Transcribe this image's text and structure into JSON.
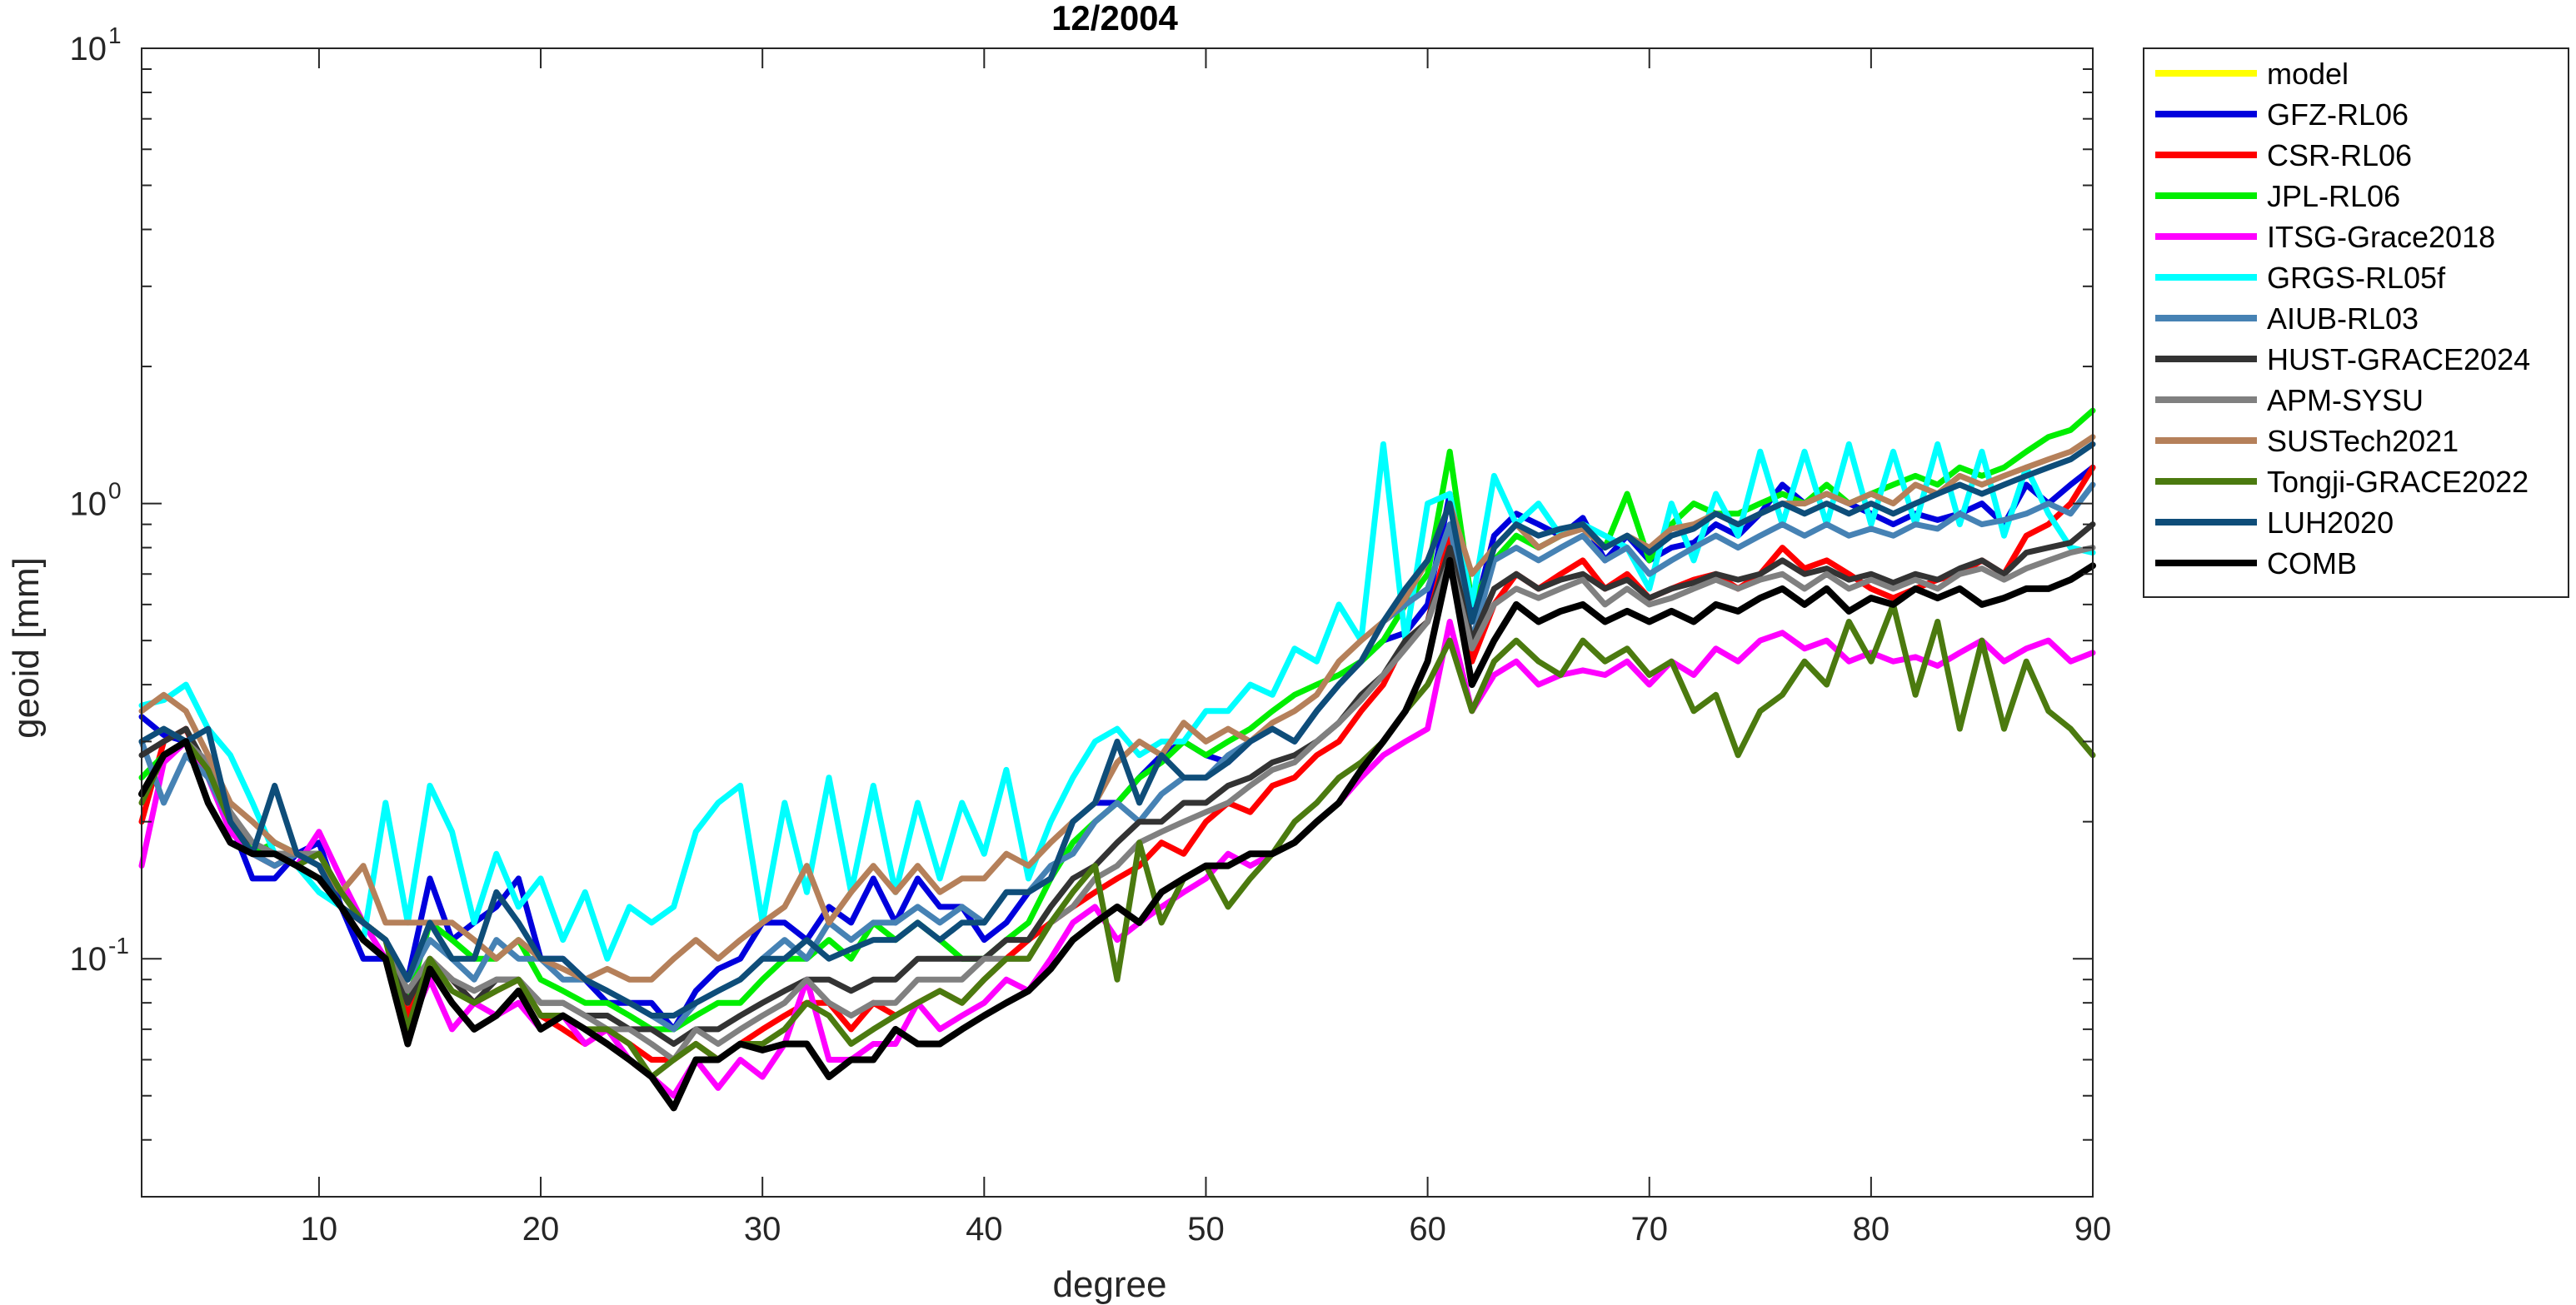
{
  "chart_data": {
    "type": "line",
    "title": "12/2004",
    "xlabel": "degree",
    "ylabel": "geoid [mm]",
    "x_scale": "linear",
    "y_scale": "log",
    "xlim": [
      2,
      90
    ],
    "ylim": [
      0.03,
      10
    ],
    "x_ticks": [
      10,
      20,
      30,
      40,
      50,
      60,
      70,
      80,
      90
    ],
    "x_tick_labels": [
      "10",
      "20",
      "30",
      "40",
      "50",
      "60",
      "70",
      "80",
      "90"
    ],
    "y_ticks": [
      {
        "value": 0.1,
        "base": "10",
        "exp": "-1"
      },
      {
        "value": 1,
        "base": "10",
        "exp": "0"
      },
      {
        "value": 10,
        "base": "10",
        "exp": "1"
      }
    ],
    "grid": false,
    "legend_placement": "outside-right",
    "series": [
      {
        "name": "model",
        "color": "#ffff00",
        "values": []
      },
      {
        "name": "GFZ-RL06",
        "color": "#0000dd",
        "values": [
          0.34,
          0.31,
          0.3,
          0.27,
          0.2,
          0.15,
          0.15,
          0.17,
          0.18,
          0.13,
          0.1,
          0.1,
          0.09,
          0.15,
          0.11,
          0.12,
          0.13,
          0.15,
          0.1,
          0.1,
          0.09,
          0.08,
          0.08,
          0.08,
          0.07,
          0.085,
          0.095,
          0.1,
          0.12,
          0.12,
          0.11,
          0.13,
          0.12,
          0.15,
          0.12,
          0.15,
          0.13,
          0.13,
          0.11,
          0.12,
          0.14,
          0.15,
          0.2,
          0.22,
          0.22,
          0.25,
          0.28,
          0.3,
          0.28,
          0.27,
          0.3,
          0.32,
          0.3,
          0.35,
          0.4,
          0.45,
          0.5,
          0.52,
          0.6,
          1.05,
          0.55,
          0.85,
          0.95,
          0.9,
          0.85,
          0.93,
          0.75,
          0.85,
          0.75,
          0.8,
          0.82,
          0.9,
          0.85,
          0.95,
          1.1,
          1.0,
          1.05,
          1.0,
          0.95,
          0.9,
          0.95,
          0.92,
          0.95,
          1.0,
          0.9,
          1.1,
          1.0,
          1.1,
          1.2
        ]
      },
      {
        "name": "CSR-RL06",
        "color": "#ff0000",
        "values": [
          0.2,
          0.3,
          0.32,
          0.25,
          0.2,
          0.17,
          0.16,
          0.17,
          0.16,
          0.13,
          0.12,
          0.11,
          0.075,
          0.1,
          0.09,
          0.08,
          0.085,
          0.09,
          0.075,
          0.07,
          0.065,
          0.07,
          0.065,
          0.06,
          0.06,
          0.065,
          0.06,
          0.065,
          0.07,
          0.075,
          0.08,
          0.08,
          0.07,
          0.08,
          0.075,
          0.08,
          0.085,
          0.08,
          0.09,
          0.1,
          0.11,
          0.12,
          0.13,
          0.14,
          0.15,
          0.16,
          0.18,
          0.17,
          0.2,
          0.22,
          0.21,
          0.24,
          0.25,
          0.28,
          0.3,
          0.35,
          0.4,
          0.5,
          0.55,
          0.85,
          0.45,
          0.6,
          0.7,
          0.65,
          0.7,
          0.75,
          0.65,
          0.7,
          0.62,
          0.65,
          0.68,
          0.7,
          0.65,
          0.7,
          0.8,
          0.72,
          0.75,
          0.7,
          0.65,
          0.62,
          0.65,
          0.68,
          0.7,
          0.75,
          0.7,
          0.85,
          0.9,
          1.0,
          1.2
        ]
      },
      {
        "name": "JPL-RL06",
        "color": "#00ee00",
        "values": [
          0.25,
          0.28,
          0.3,
          0.26,
          0.21,
          0.17,
          0.18,
          0.17,
          0.17,
          0.14,
          0.12,
          0.11,
          0.08,
          0.12,
          0.11,
          0.1,
          0.1,
          0.11,
          0.09,
          0.085,
          0.08,
          0.08,
          0.075,
          0.07,
          0.07,
          0.075,
          0.08,
          0.08,
          0.09,
          0.1,
          0.1,
          0.11,
          0.1,
          0.12,
          0.11,
          0.12,
          0.11,
          0.1,
          0.1,
          0.11,
          0.12,
          0.15,
          0.18,
          0.2,
          0.22,
          0.25,
          0.27,
          0.3,
          0.28,
          0.3,
          0.32,
          0.35,
          0.38,
          0.4,
          0.42,
          0.45,
          0.5,
          0.6,
          0.7,
          1.3,
          0.6,
          0.75,
          0.85,
          0.8,
          0.85,
          0.9,
          0.8,
          1.05,
          0.75,
          0.9,
          1.0,
          0.95,
          0.95,
          1.0,
          1.05,
          1.0,
          1.1,
          1.0,
          1.05,
          1.1,
          1.15,
          1.1,
          1.2,
          1.15,
          1.2,
          1.3,
          1.4,
          1.45,
          1.6
        ]
      },
      {
        "name": "ITSG-Grace2018",
        "color": "#ff00ff",
        "values": [
          0.16,
          0.27,
          0.3,
          0.25,
          0.19,
          0.17,
          0.17,
          0.16,
          0.19,
          0.15,
          0.12,
          0.1,
          0.07,
          0.09,
          0.07,
          0.08,
          0.075,
          0.08,
          0.07,
          0.075,
          0.065,
          0.07,
          0.06,
          0.055,
          0.05,
          0.06,
          0.052,
          0.06,
          0.055,
          0.065,
          0.09,
          0.06,
          0.06,
          0.065,
          0.065,
          0.08,
          0.07,
          0.075,
          0.08,
          0.09,
          0.085,
          0.1,
          0.12,
          0.13,
          0.11,
          0.12,
          0.13,
          0.14,
          0.15,
          0.17,
          0.16,
          0.17,
          0.18,
          0.2,
          0.22,
          0.25,
          0.28,
          0.3,
          0.32,
          0.55,
          0.35,
          0.42,
          0.45,
          0.4,
          0.42,
          0.43,
          0.42,
          0.45,
          0.4,
          0.45,
          0.42,
          0.48,
          0.45,
          0.5,
          0.52,
          0.48,
          0.5,
          0.45,
          0.47,
          0.45,
          0.46,
          0.44,
          0.47,
          0.5,
          0.45,
          0.48,
          0.5,
          0.45,
          0.47
        ]
      },
      {
        "name": "GRGS-RL05f",
        "color": "#00ffff",
        "values": [
          0.36,
          0.37,
          0.4,
          0.32,
          0.28,
          0.22,
          0.17,
          0.16,
          0.14,
          0.13,
          0.11,
          0.22,
          0.12,
          0.24,
          0.19,
          0.12,
          0.17,
          0.13,
          0.15,
          0.11,
          0.14,
          0.1,
          0.13,
          0.12,
          0.13,
          0.19,
          0.22,
          0.24,
          0.12,
          0.22,
          0.14,
          0.25,
          0.14,
          0.24,
          0.14,
          0.22,
          0.15,
          0.22,
          0.17,
          0.26,
          0.15,
          0.2,
          0.25,
          0.3,
          0.32,
          0.28,
          0.3,
          0.3,
          0.35,
          0.35,
          0.4,
          0.38,
          0.48,
          0.45,
          0.6,
          0.5,
          1.35,
          0.5,
          1.0,
          1.05,
          0.6,
          1.15,
          0.9,
          1.0,
          0.85,
          0.9,
          0.85,
          0.8,
          0.65,
          1.0,
          0.75,
          1.05,
          0.85,
          1.3,
          0.9,
          1.3,
          0.9,
          1.35,
          0.9,
          1.3,
          0.9,
          1.35,
          0.9,
          1.3,
          0.85,
          1.2,
          0.95,
          0.8,
          0.78
        ]
      },
      {
        "name": "AIUB-RL03",
        "color": "#4682b4",
        "values": [
          0.3,
          0.22,
          0.28,
          0.25,
          0.2,
          0.17,
          0.16,
          0.17,
          0.16,
          0.14,
          0.12,
          0.11,
          0.09,
          0.11,
          0.1,
          0.09,
          0.11,
          0.1,
          0.1,
          0.09,
          0.09,
          0.085,
          0.08,
          0.075,
          0.07,
          0.08,
          0.085,
          0.09,
          0.1,
          0.11,
          0.1,
          0.12,
          0.11,
          0.12,
          0.12,
          0.13,
          0.12,
          0.13,
          0.12,
          0.14,
          0.14,
          0.16,
          0.17,
          0.2,
          0.22,
          0.2,
          0.23,
          0.25,
          0.25,
          0.28,
          0.3,
          0.32,
          0.3,
          0.35,
          0.4,
          0.45,
          0.55,
          0.6,
          0.65,
          0.9,
          0.5,
          0.75,
          0.8,
          0.75,
          0.8,
          0.85,
          0.75,
          0.8,
          0.7,
          0.75,
          0.8,
          0.85,
          0.8,
          0.85,
          0.9,
          0.85,
          0.9,
          0.85,
          0.88,
          0.85,
          0.9,
          0.88,
          0.95,
          0.9,
          0.92,
          0.95,
          1.0,
          0.95,
          1.1
        ]
      },
      {
        "name": "HUST-GRACE2024",
        "color": "#333333",
        "values": [
          0.28,
          0.3,
          0.32,
          0.26,
          0.2,
          0.18,
          0.17,
          0.17,
          0.17,
          0.14,
          0.12,
          0.11,
          0.08,
          0.1,
          0.09,
          0.08,
          0.09,
          0.09,
          0.08,
          0.08,
          0.075,
          0.075,
          0.07,
          0.07,
          0.065,
          0.07,
          0.07,
          0.075,
          0.08,
          0.085,
          0.09,
          0.09,
          0.085,
          0.09,
          0.09,
          0.1,
          0.1,
          0.1,
          0.1,
          0.11,
          0.11,
          0.13,
          0.15,
          0.16,
          0.18,
          0.2,
          0.2,
          0.22,
          0.22,
          0.24,
          0.25,
          0.27,
          0.28,
          0.3,
          0.33,
          0.38,
          0.42,
          0.5,
          0.55,
          0.8,
          0.5,
          0.65,
          0.7,
          0.65,
          0.68,
          0.7,
          0.65,
          0.68,
          0.62,
          0.65,
          0.67,
          0.7,
          0.68,
          0.7,
          0.75,
          0.7,
          0.72,
          0.68,
          0.7,
          0.67,
          0.7,
          0.68,
          0.72,
          0.75,
          0.7,
          0.78,
          0.8,
          0.82,
          0.9
        ]
      },
      {
        "name": "APM-SYSU",
        "color": "#808080",
        "values": [
          0.3,
          0.32,
          0.3,
          0.27,
          0.21,
          0.18,
          0.17,
          0.17,
          0.17,
          0.14,
          0.12,
          0.11,
          0.085,
          0.1,
          0.09,
          0.085,
          0.09,
          0.09,
          0.08,
          0.08,
          0.075,
          0.07,
          0.07,
          0.065,
          0.06,
          0.07,
          0.065,
          0.07,
          0.075,
          0.08,
          0.09,
          0.08,
          0.075,
          0.08,
          0.08,
          0.09,
          0.09,
          0.09,
          0.1,
          0.1,
          0.1,
          0.12,
          0.13,
          0.15,
          0.16,
          0.18,
          0.19,
          0.2,
          0.21,
          0.22,
          0.24,
          0.26,
          0.27,
          0.3,
          0.33,
          0.37,
          0.42,
          0.48,
          0.55,
          0.75,
          0.48,
          0.6,
          0.65,
          0.62,
          0.65,
          0.68,
          0.6,
          0.65,
          0.6,
          0.62,
          0.65,
          0.68,
          0.65,
          0.68,
          0.7,
          0.65,
          0.7,
          0.65,
          0.68,
          0.65,
          0.68,
          0.65,
          0.7,
          0.72,
          0.68,
          0.72,
          0.75,
          0.78,
          0.8
        ]
      },
      {
        "name": "SUSTech2021",
        "color": "#b5805a",
        "values": [
          0.35,
          0.38,
          0.35,
          0.28,
          0.22,
          0.2,
          0.18,
          0.17,
          0.16,
          0.14,
          0.16,
          0.12,
          0.12,
          0.12,
          0.12,
          0.11,
          0.1,
          0.11,
          0.1,
          0.095,
          0.09,
          0.095,
          0.09,
          0.09,
          0.1,
          0.11,
          0.1,
          0.11,
          0.12,
          0.13,
          0.16,
          0.12,
          0.14,
          0.16,
          0.14,
          0.16,
          0.14,
          0.15,
          0.15,
          0.17,
          0.16,
          0.18,
          0.2,
          0.22,
          0.27,
          0.3,
          0.28,
          0.33,
          0.3,
          0.32,
          0.3,
          0.33,
          0.35,
          0.38,
          0.45,
          0.5,
          0.55,
          0.62,
          0.75,
          1.0,
          0.7,
          0.8,
          0.9,
          0.8,
          0.85,
          0.88,
          0.8,
          0.85,
          0.8,
          0.88,
          0.9,
          0.95,
          0.9,
          0.95,
          1.0,
          1.0,
          1.05,
          1.0,
          1.05,
          1.0,
          1.1,
          1.05,
          1.15,
          1.1,
          1.15,
          1.2,
          1.25,
          1.3,
          1.4
        ]
      },
      {
        "name": "Tongji-GRACE2022",
        "color": "#4b7a0f",
        "values": [
          0.22,
          0.28,
          0.3,
          0.26,
          0.2,
          0.17,
          0.17,
          0.16,
          0.17,
          0.14,
          0.12,
          0.11,
          0.07,
          0.1,
          0.085,
          0.08,
          0.085,
          0.09,
          0.075,
          0.075,
          0.07,
          0.07,
          0.065,
          0.055,
          0.06,
          0.065,
          0.06,
          0.065,
          0.065,
          0.07,
          0.08,
          0.075,
          0.065,
          0.07,
          0.075,
          0.08,
          0.085,
          0.08,
          0.09,
          0.1,
          0.1,
          0.12,
          0.14,
          0.16,
          0.09,
          0.18,
          0.12,
          0.15,
          0.16,
          0.13,
          0.15,
          0.17,
          0.2,
          0.22,
          0.25,
          0.27,
          0.3,
          0.35,
          0.4,
          0.5,
          0.35,
          0.45,
          0.5,
          0.45,
          0.42,
          0.5,
          0.45,
          0.48,
          0.42,
          0.45,
          0.35,
          0.38,
          0.28,
          0.35,
          0.38,
          0.45,
          0.4,
          0.55,
          0.45,
          0.6,
          0.38,
          0.55,
          0.32,
          0.5,
          0.32,
          0.45,
          0.35,
          0.32,
          0.28
        ]
      },
      {
        "name": "LUH2020",
        "color": "#0e4d79",
        "values": [
          0.3,
          0.32,
          0.3,
          0.32,
          0.2,
          0.17,
          0.24,
          0.17,
          0.16,
          0.13,
          0.12,
          0.11,
          0.09,
          0.12,
          0.1,
          0.1,
          0.14,
          0.12,
          0.1,
          0.1,
          0.09,
          0.085,
          0.08,
          0.075,
          0.075,
          0.08,
          0.085,
          0.09,
          0.1,
          0.1,
          0.11,
          0.1,
          0.105,
          0.11,
          0.11,
          0.12,
          0.11,
          0.12,
          0.12,
          0.14,
          0.14,
          0.15,
          0.2,
          0.22,
          0.3,
          0.22,
          0.28,
          0.25,
          0.25,
          0.27,
          0.3,
          0.32,
          0.3,
          0.35,
          0.4,
          0.45,
          0.55,
          0.65,
          0.75,
          1.0,
          0.55,
          0.8,
          0.9,
          0.85,
          0.88,
          0.9,
          0.8,
          0.85,
          0.78,
          0.85,
          0.88,
          0.95,
          0.9,
          0.95,
          1.0,
          0.95,
          1.0,
          0.95,
          1.0,
          0.95,
          1.0,
          1.05,
          1.1,
          1.05,
          1.1,
          1.15,
          1.2,
          1.25,
          1.35
        ]
      },
      {
        "name": "COMB",
        "color": "#000000",
        "values": [
          0.23,
          0.28,
          0.3,
          0.22,
          0.18,
          0.17,
          0.17,
          0.16,
          0.15,
          0.13,
          0.11,
          0.1,
          0.065,
          0.095,
          0.08,
          0.07,
          0.075,
          0.085,
          0.07,
          0.075,
          0.07,
          0.065,
          0.06,
          0.055,
          0.047,
          0.06,
          0.06,
          0.065,
          0.063,
          0.065,
          0.065,
          0.055,
          0.06,
          0.06,
          0.07,
          0.065,
          0.065,
          0.07,
          0.075,
          0.08,
          0.085,
          0.095,
          0.11,
          0.12,
          0.13,
          0.12,
          0.14,
          0.15,
          0.16,
          0.16,
          0.17,
          0.17,
          0.18,
          0.2,
          0.22,
          0.26,
          0.3,
          0.35,
          0.45,
          0.75,
          0.4,
          0.5,
          0.6,
          0.55,
          0.58,
          0.6,
          0.55,
          0.58,
          0.55,
          0.58,
          0.55,
          0.6,
          0.58,
          0.62,
          0.65,
          0.6,
          0.65,
          0.58,
          0.62,
          0.6,
          0.65,
          0.62,
          0.65,
          0.6,
          0.62,
          0.65,
          0.65,
          0.68,
          0.73
        ]
      }
    ]
  }
}
